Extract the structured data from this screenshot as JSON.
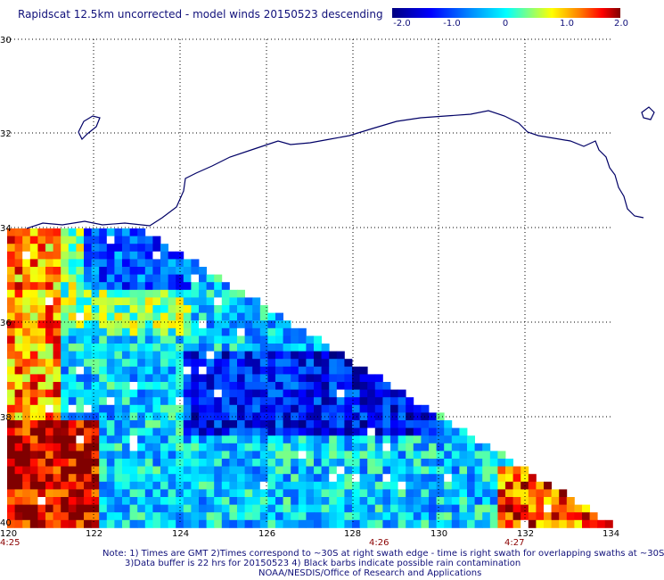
{
  "title": "Rapidscat 12.5km uncorrected - model winds 20150523 descending",
  "colorbar": {
    "ticks": [
      "-2.0",
      "-1.0",
      "0",
      "1.0",
      "2.0"
    ],
    "range": [
      -2.0,
      2.0
    ]
  },
  "map": {
    "lon_ticks": [
      "120",
      "122",
      "124",
      "126",
      "128",
      "130",
      "132",
      "134"
    ],
    "lat_ticks": [
      "30",
      "32",
      "34",
      "36",
      "38",
      "40"
    ],
    "time_labels": [
      "4:25",
      "4:26",
      "4:27"
    ],
    "colors": {
      "coast": "#000066",
      "grid": "#000000",
      "time": "#8b0000"
    }
  },
  "notes": {
    "line1": "Note: 1) Times are GMT 2)Times correspond to ~30S at right swath edge - time is right swath for overlapping swaths at ~30S",
    "line2": "3)Data buffer is 22 hrs for 20150523 4) Black barbs indicate possible rain contamination",
    "line3": "NOAA/NESDIS/Office of Research and Applications"
  }
}
